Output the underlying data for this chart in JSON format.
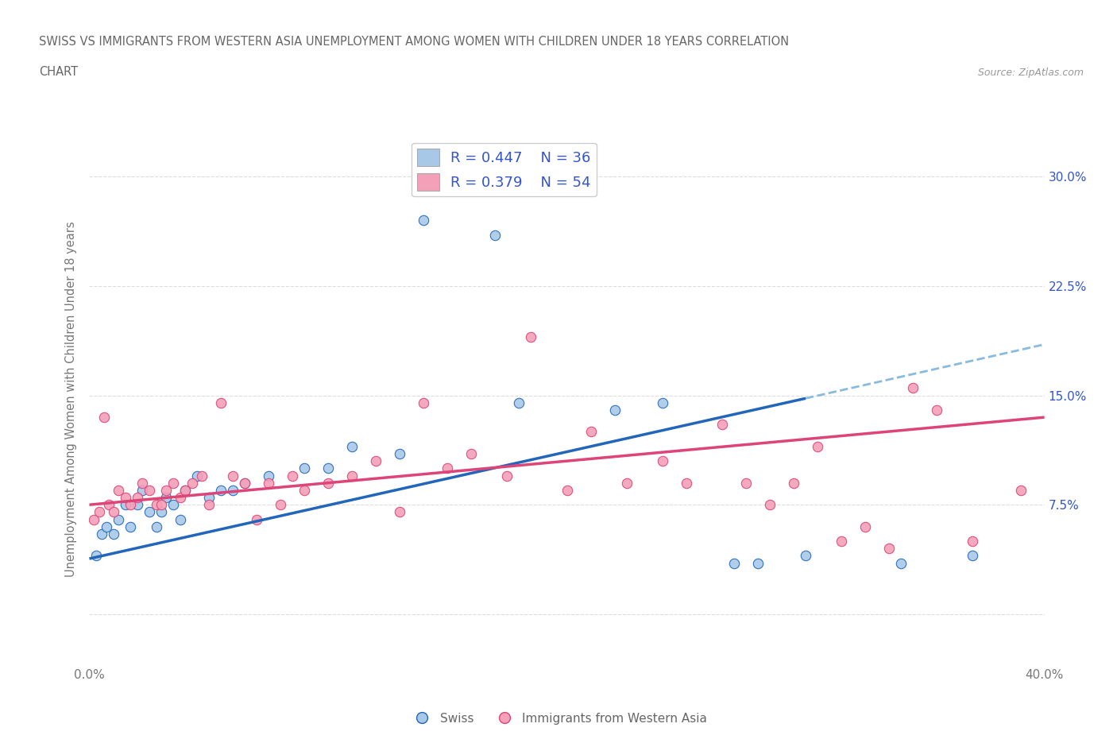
{
  "title_line1": "SWISS VS IMMIGRANTS FROM WESTERN ASIA UNEMPLOYMENT AMONG WOMEN WITH CHILDREN UNDER 18 YEARS CORRELATION",
  "title_line2": "CHART",
  "source": "Source: ZipAtlas.com",
  "ylabel": "Unemployment Among Women with Children Under 18 years",
  "xlim": [
    0.0,
    40.0
  ],
  "ylim": [
    -3.5,
    33.0
  ],
  "yticks": [
    0.0,
    7.5,
    15.0,
    22.5,
    30.0
  ],
  "xticks": [
    0.0,
    10.0,
    20.0,
    30.0,
    40.0
  ],
  "xtick_labels": [
    "0.0%",
    "",
    "",
    "",
    "40.0%"
  ],
  "ytick_labels": [
    "",
    "7.5%",
    "15.0%",
    "22.5%",
    "30.0%"
  ],
  "R_swiss": 0.447,
  "N_swiss": 36,
  "R_immigrants": 0.379,
  "N_immigrants": 54,
  "color_swiss": "#a8c8e8",
  "color_immigrants": "#f4a0b8",
  "color_text": "#3355cc",
  "trendline_swiss_color": "#2266bb",
  "trendline_immigrants_color": "#dd4477",
  "trendline_swiss_dashed": "#88bbdd",
  "background": "#ffffff",
  "swiss_x": [
    0.3,
    0.5,
    0.7,
    1.0,
    1.2,
    1.5,
    1.7,
    2.0,
    2.2,
    2.5,
    2.8,
    3.0,
    3.2,
    3.5,
    3.8,
    4.0,
    4.5,
    5.0,
    5.5,
    6.0,
    6.5,
    7.5,
    9.0,
    10.0,
    11.0,
    13.0,
    14.0,
    17.0,
    18.0,
    22.0,
    24.0,
    27.0,
    28.0,
    30.0,
    34.0,
    37.0
  ],
  "swiss_y": [
    4.0,
    5.5,
    6.0,
    5.5,
    6.5,
    7.5,
    6.0,
    7.5,
    8.5,
    7.0,
    6.0,
    7.0,
    8.0,
    7.5,
    6.5,
    8.5,
    9.5,
    8.0,
    8.5,
    8.5,
    9.0,
    9.5,
    10.0,
    10.0,
    11.5,
    11.0,
    27.0,
    26.0,
    14.5,
    14.0,
    14.5,
    3.5,
    3.5,
    4.0,
    3.5,
    4.0
  ],
  "immigrants_x": [
    0.2,
    0.4,
    0.6,
    0.8,
    1.0,
    1.2,
    1.5,
    1.7,
    2.0,
    2.2,
    2.5,
    2.8,
    3.0,
    3.2,
    3.5,
    3.8,
    4.0,
    4.3,
    4.7,
    5.0,
    5.5,
    6.0,
    6.5,
    7.0,
    7.5,
    8.0,
    8.5,
    9.0,
    10.0,
    11.0,
    12.0,
    13.0,
    14.0,
    15.0,
    16.0,
    17.5,
    18.5,
    20.0,
    21.0,
    22.5,
    24.0,
    25.0,
    26.5,
    27.5,
    28.5,
    29.5,
    30.5,
    31.5,
    32.5,
    33.5,
    34.5,
    35.5,
    37.0,
    39.0
  ],
  "immigrants_y": [
    6.5,
    7.0,
    13.5,
    7.5,
    7.0,
    8.5,
    8.0,
    7.5,
    8.0,
    9.0,
    8.5,
    7.5,
    7.5,
    8.5,
    9.0,
    8.0,
    8.5,
    9.0,
    9.5,
    7.5,
    14.5,
    9.5,
    9.0,
    6.5,
    9.0,
    7.5,
    9.5,
    8.5,
    9.0,
    9.5,
    10.5,
    7.0,
    14.5,
    10.0,
    11.0,
    9.5,
    19.0,
    8.5,
    12.5,
    9.0,
    10.5,
    9.0,
    13.0,
    9.0,
    7.5,
    9.0,
    11.5,
    5.0,
    6.0,
    4.5,
    15.5,
    14.0,
    5.0,
    8.5
  ],
  "trendline_swiss_x0": 0.0,
  "trendline_swiss_y0": 3.8,
  "trendline_swiss_x1": 30.0,
  "trendline_swiss_y1": 14.8,
  "trendline_dash_x0": 30.0,
  "trendline_dash_y0": 14.8,
  "trendline_dash_x1": 40.0,
  "trendline_dash_y1": 18.5,
  "trendline_imm_x0": 0.0,
  "trendline_imm_y0": 7.5,
  "trendline_imm_x1": 40.0,
  "trendline_imm_y1": 13.5
}
